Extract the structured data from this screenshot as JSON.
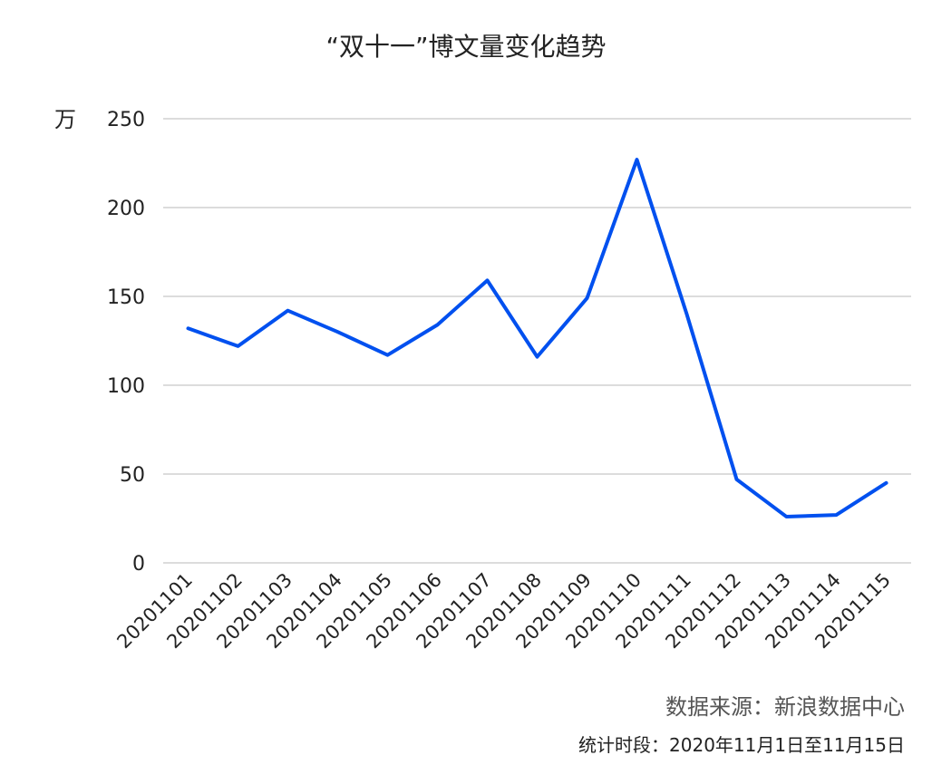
{
  "title": "“双十一”博文量变化趋势",
  "source": "数据来源：新浪数据中心",
  "period": "统计时段：2020年11月1日至11月15日",
  "chart_data": {
    "type": "line",
    "title": "“双十一”博文量变化趋势",
    "unit": "万",
    "xlabel": "",
    "ylabel": "",
    "ylim": [
      0,
      250
    ],
    "yticks": [
      "0",
      "50",
      "100",
      "150",
      "200",
      "250"
    ],
    "grid": true,
    "line_color": "#0050ef",
    "categories": [
      "20201101",
      "20201102",
      "20201103",
      "20201104",
      "20201105",
      "20201106",
      "20201107",
      "20201108",
      "20201109",
      "20201110",
      "20201111",
      "20201112",
      "20201113",
      "20201114",
      "20201115"
    ],
    "values": [
      132,
      122,
      142,
      130,
      117,
      134,
      159,
      116,
      149,
      227,
      140,
      47,
      26,
      27,
      45
    ]
  }
}
